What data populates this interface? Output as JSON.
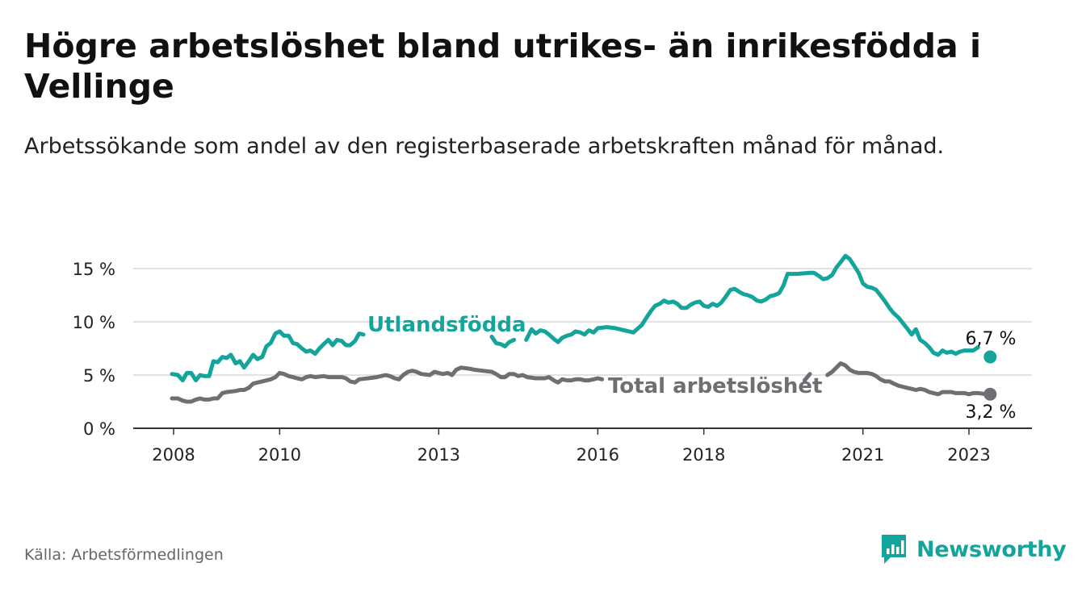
{
  "title": "Högre arbetslöshet bland utrikes- än inrikesfödda i Vellinge",
  "subtitle": "Arbetssökande som andel av den registerbaserade arbetskraften månad för månad.",
  "source": "Källa: Arbetsförmedlingen",
  "brand": "Newsworthy",
  "colors": {
    "utlandsfodda": "#13a49b",
    "total": "#6e6e73",
    "brand": "#13a49b",
    "grid": "#d9d9d9",
    "axis": "#333333"
  },
  "chart_data": {
    "type": "line",
    "title": "Högre arbetslöshet bland utrikes- än inrikesfödda i Vellinge",
    "xlabel": "",
    "ylabel": "",
    "xlim": [
      2008.0,
      2024.25
    ],
    "ylim": [
      0,
      15
    ],
    "x_ticks": [
      2008,
      2010,
      2013,
      2016,
      2018,
      2021,
      2023
    ],
    "y_ticks": [
      {
        "value": 0,
        "label": "0 %"
      },
      {
        "value": 5,
        "label": "5 %"
      },
      {
        "value": 10,
        "label": "10 %"
      },
      {
        "value": 15,
        "label": "15 %"
      }
    ],
    "series": [
      {
        "name": "Utlandsfödda",
        "key": "utlandsfodda",
        "label": "Utlandsfödda",
        "end_label": "6,7 %",
        "end_value": 6.7,
        "end_x": 2023.4,
        "points": [
          [
            2007.97,
            5.1
          ],
          [
            2008.08,
            5.0
          ],
          [
            2008.17,
            4.5
          ],
          [
            2008.25,
            5.2
          ],
          [
            2008.33,
            5.2
          ],
          [
            2008.42,
            4.5
          ],
          [
            2008.5,
            5.0
          ],
          [
            2008.58,
            4.9
          ],
          [
            2008.67,
            4.9
          ],
          [
            2008.75,
            6.3
          ],
          [
            2008.83,
            6.2
          ],
          [
            2008.92,
            6.7
          ],
          [
            2009.0,
            6.6
          ],
          [
            2009.08,
            6.9
          ],
          [
            2009.17,
            6.1
          ],
          [
            2009.25,
            6.3
          ],
          [
            2009.33,
            5.7
          ],
          [
            2009.42,
            6.3
          ],
          [
            2009.5,
            6.9
          ],
          [
            2009.58,
            6.5
          ],
          [
            2009.67,
            6.7
          ],
          [
            2009.75,
            7.7
          ],
          [
            2009.83,
            8.0
          ],
          [
            2009.92,
            8.9
          ],
          [
            2010.0,
            9.1
          ],
          [
            2010.08,
            8.7
          ],
          [
            2010.17,
            8.7
          ],
          [
            2010.25,
            8.0
          ],
          [
            2010.33,
            7.9
          ],
          [
            2010.42,
            7.5
          ],
          [
            2010.5,
            7.2
          ],
          [
            2010.58,
            7.3
          ],
          [
            2010.67,
            7.0
          ],
          [
            2010.75,
            7.5
          ],
          [
            2010.83,
            7.9
          ],
          [
            2010.92,
            8.3
          ],
          [
            2011.0,
            7.8
          ],
          [
            2011.08,
            8.3
          ],
          [
            2011.17,
            8.2
          ],
          [
            2011.25,
            7.8
          ],
          [
            2011.33,
            7.8
          ],
          [
            2011.42,
            8.2
          ],
          [
            2011.5,
            8.9
          ],
          [
            2011.58,
            8.8
          ],
          null,
          [
            2014.0,
            8.6
          ],
          [
            2014.08,
            8.0
          ],
          [
            2014.17,
            7.9
          ],
          [
            2014.25,
            7.7
          ],
          [
            2014.33,
            8.1
          ],
          [
            2014.42,
            8.3
          ],
          null,
          [
            2014.65,
            8.3
          ],
          [
            2014.75,
            9.3
          ],
          [
            2014.83,
            8.9
          ],
          [
            2014.92,
            9.2
          ],
          [
            2015.0,
            9.1
          ],
          [
            2015.08,
            8.8
          ],
          [
            2015.17,
            8.4
          ],
          [
            2015.25,
            8.1
          ],
          [
            2015.33,
            8.5
          ],
          [
            2015.42,
            8.7
          ],
          [
            2015.5,
            8.8
          ],
          [
            2015.58,
            9.1
          ],
          [
            2015.67,
            9.0
          ],
          [
            2015.75,
            8.8
          ],
          [
            2015.83,
            9.2
          ],
          [
            2015.92,
            9.0
          ],
          [
            2016.0,
            9.4
          ],
          [
            2016.17,
            9.5
          ],
          [
            2016.33,
            9.4
          ],
          [
            2016.5,
            9.2
          ],
          [
            2016.67,
            9.0
          ],
          [
            2016.83,
            9.7
          ],
          [
            2016.92,
            10.4
          ],
          [
            2017.0,
            11.0
          ],
          [
            2017.08,
            11.5
          ],
          [
            2017.17,
            11.7
          ],
          [
            2017.25,
            12.0
          ],
          [
            2017.33,
            11.8
          ],
          [
            2017.42,
            11.9
          ],
          [
            2017.5,
            11.7
          ],
          [
            2017.58,
            11.3
          ],
          [
            2017.67,
            11.3
          ],
          [
            2017.75,
            11.6
          ],
          [
            2017.83,
            11.8
          ],
          [
            2017.92,
            11.9
          ],
          [
            2018.0,
            11.5
          ],
          [
            2018.08,
            11.4
          ],
          [
            2018.17,
            11.7
          ],
          [
            2018.25,
            11.5
          ],
          [
            2018.33,
            11.8
          ],
          [
            2018.42,
            12.4
          ],
          [
            2018.5,
            13.0
          ],
          [
            2018.58,
            13.1
          ],
          [
            2018.67,
            12.8
          ],
          [
            2018.75,
            12.6
          ],
          [
            2018.83,
            12.5
          ],
          [
            2018.92,
            12.3
          ],
          [
            2019.0,
            12.0
          ],
          [
            2019.08,
            11.9
          ],
          [
            2019.17,
            12.1
          ],
          [
            2019.25,
            12.4
          ],
          [
            2019.33,
            12.5
          ],
          [
            2019.42,
            12.7
          ],
          [
            2019.5,
            13.4
          ],
          [
            2019.58,
            14.5
          ],
          [
            2019.75,
            14.5
          ],
          [
            2020.0,
            14.6
          ],
          [
            2020.08,
            14.6
          ],
          [
            2020.17,
            14.3
          ],
          [
            2020.25,
            14.0
          ],
          [
            2020.33,
            14.1
          ],
          [
            2020.42,
            14.4
          ],
          [
            2020.5,
            15.1
          ],
          [
            2020.58,
            15.6
          ],
          [
            2020.67,
            16.2
          ],
          [
            2020.75,
            15.9
          ],
          [
            2020.83,
            15.3
          ],
          [
            2020.92,
            14.6
          ],
          [
            2021.0,
            13.6
          ],
          [
            2021.08,
            13.3
          ],
          [
            2021.17,
            13.2
          ],
          [
            2021.25,
            13.0
          ],
          [
            2021.33,
            12.5
          ],
          [
            2021.42,
            11.9
          ],
          [
            2021.5,
            11.3
          ],
          [
            2021.58,
            10.8
          ],
          [
            2021.67,
            10.4
          ],
          [
            2021.75,
            9.9
          ],
          [
            2021.83,
            9.4
          ],
          [
            2021.92,
            8.8
          ],
          [
            2022.0,
            9.3
          ],
          [
            2022.08,
            8.3
          ],
          [
            2022.17,
            8.0
          ],
          [
            2022.25,
            7.6
          ],
          [
            2022.33,
            7.1
          ],
          [
            2022.42,
            6.9
          ],
          [
            2022.5,
            7.3
          ],
          [
            2022.58,
            7.1
          ],
          [
            2022.67,
            7.2
          ],
          [
            2022.75,
            7.0
          ],
          [
            2022.83,
            7.2
          ],
          [
            2022.92,
            7.3
          ],
          [
            2023.08,
            7.3
          ],
          [
            2023.17,
            7.6
          ]
        ]
      },
      {
        "name": "Total arbetslöshet",
        "key": "total",
        "label": "Total arbetslöshet",
        "end_label": "3,2 %",
        "end_value": 3.2,
        "end_x": 2023.4,
        "points": [
          [
            2007.97,
            2.8
          ],
          [
            2008.08,
            2.8
          ],
          [
            2008.17,
            2.6
          ],
          [
            2008.25,
            2.5
          ],
          [
            2008.33,
            2.5
          ],
          [
            2008.42,
            2.7
          ],
          [
            2008.5,
            2.8
          ],
          [
            2008.58,
            2.7
          ],
          [
            2008.67,
            2.7
          ],
          [
            2008.75,
            2.8
          ],
          [
            2008.83,
            2.8
          ],
          [
            2008.92,
            3.3
          ],
          [
            2009.0,
            3.4
          ],
          [
            2009.17,
            3.5
          ],
          [
            2009.25,
            3.6
          ],
          [
            2009.33,
            3.6
          ],
          [
            2009.42,
            3.8
          ],
          [
            2009.5,
            4.2
          ],
          [
            2009.67,
            4.4
          ],
          [
            2009.83,
            4.6
          ],
          [
            2009.92,
            4.8
          ],
          [
            2010.0,
            5.2
          ],
          [
            2010.08,
            5.1
          ],
          [
            2010.17,
            4.9
          ],
          [
            2010.25,
            4.8
          ],
          [
            2010.33,
            4.7
          ],
          [
            2010.42,
            4.6
          ],
          [
            2010.5,
            4.8
          ],
          [
            2010.58,
            4.9
          ],
          [
            2010.67,
            4.8
          ],
          [
            2010.83,
            4.9
          ],
          [
            2010.92,
            4.8
          ],
          [
            2011.0,
            4.8
          ],
          [
            2011.17,
            4.8
          ],
          [
            2011.25,
            4.7
          ],
          [
            2011.33,
            4.4
          ],
          [
            2011.42,
            4.3
          ],
          [
            2011.5,
            4.6
          ],
          [
            2011.67,
            4.7
          ],
          [
            2011.83,
            4.8
          ],
          [
            2012.0,
            5.0
          ],
          [
            2012.08,
            4.9
          ],
          [
            2012.17,
            4.7
          ],
          [
            2012.25,
            4.6
          ],
          [
            2012.33,
            5.0
          ],
          [
            2012.42,
            5.3
          ],
          [
            2012.5,
            5.4
          ],
          [
            2012.58,
            5.3
          ],
          [
            2012.67,
            5.1
          ],
          [
            2012.83,
            5.0
          ],
          [
            2012.92,
            5.3
          ],
          [
            2013.0,
            5.2
          ],
          [
            2013.08,
            5.1
          ],
          [
            2013.17,
            5.2
          ],
          [
            2013.25,
            5.0
          ],
          [
            2013.33,
            5.5
          ],
          [
            2013.42,
            5.7
          ],
          [
            2013.58,
            5.6
          ],
          [
            2013.67,
            5.5
          ],
          [
            2013.83,
            5.4
          ],
          [
            2014.0,
            5.3
          ],
          [
            2014.08,
            5.1
          ],
          [
            2014.17,
            4.8
          ],
          [
            2014.25,
            4.8
          ],
          [
            2014.33,
            5.1
          ],
          [
            2014.42,
            5.1
          ],
          [
            2014.5,
            4.9
          ],
          [
            2014.58,
            5.0
          ],
          [
            2014.67,
            4.8
          ],
          [
            2014.83,
            4.7
          ],
          [
            2015.0,
            4.7
          ],
          [
            2015.08,
            4.8
          ],
          [
            2015.17,
            4.5
          ],
          [
            2015.25,
            4.3
          ],
          [
            2015.33,
            4.6
          ],
          [
            2015.42,
            4.5
          ],
          [
            2015.5,
            4.5
          ],
          [
            2015.58,
            4.6
          ],
          [
            2015.67,
            4.6
          ],
          [
            2015.75,
            4.5
          ],
          [
            2015.83,
            4.5
          ],
          [
            2015.92,
            4.6
          ],
          [
            2016.0,
            4.7
          ],
          [
            2016.08,
            4.6
          ],
          null,
          [
            2019.9,
            4.5
          ],
          [
            2020.0,
            5.1
          ],
          null,
          [
            2020.33,
            5.0
          ],
          [
            2020.42,
            5.3
          ],
          [
            2020.5,
            5.7
          ],
          [
            2020.58,
            6.1
          ],
          [
            2020.67,
            5.9
          ],
          [
            2020.75,
            5.5
          ],
          [
            2020.83,
            5.3
          ],
          [
            2020.92,
            5.2
          ],
          [
            2021.0,
            5.2
          ],
          [
            2021.08,
            5.2
          ],
          [
            2021.17,
            5.1
          ],
          [
            2021.25,
            4.9
          ],
          [
            2021.33,
            4.6
          ],
          [
            2021.42,
            4.4
          ],
          [
            2021.5,
            4.4
          ],
          [
            2021.58,
            4.2
          ],
          [
            2021.67,
            4.0
          ],
          [
            2021.75,
            3.9
          ],
          [
            2021.83,
            3.8
          ],
          [
            2021.92,
            3.7
          ],
          [
            2022.0,
            3.6
          ],
          [
            2022.08,
            3.7
          ],
          [
            2022.17,
            3.6
          ],
          [
            2022.25,
            3.4
          ],
          [
            2022.33,
            3.3
          ],
          [
            2022.42,
            3.2
          ],
          [
            2022.5,
            3.4
          ],
          [
            2022.67,
            3.4
          ],
          [
            2022.75,
            3.3
          ],
          [
            2022.83,
            3.3
          ],
          [
            2022.92,
            3.3
          ],
          [
            2023.0,
            3.2
          ],
          [
            2023.08,
            3.3
          ],
          [
            2023.17,
            3.3
          ],
          [
            2023.33,
            3.2
          ]
        ]
      }
    ]
  }
}
